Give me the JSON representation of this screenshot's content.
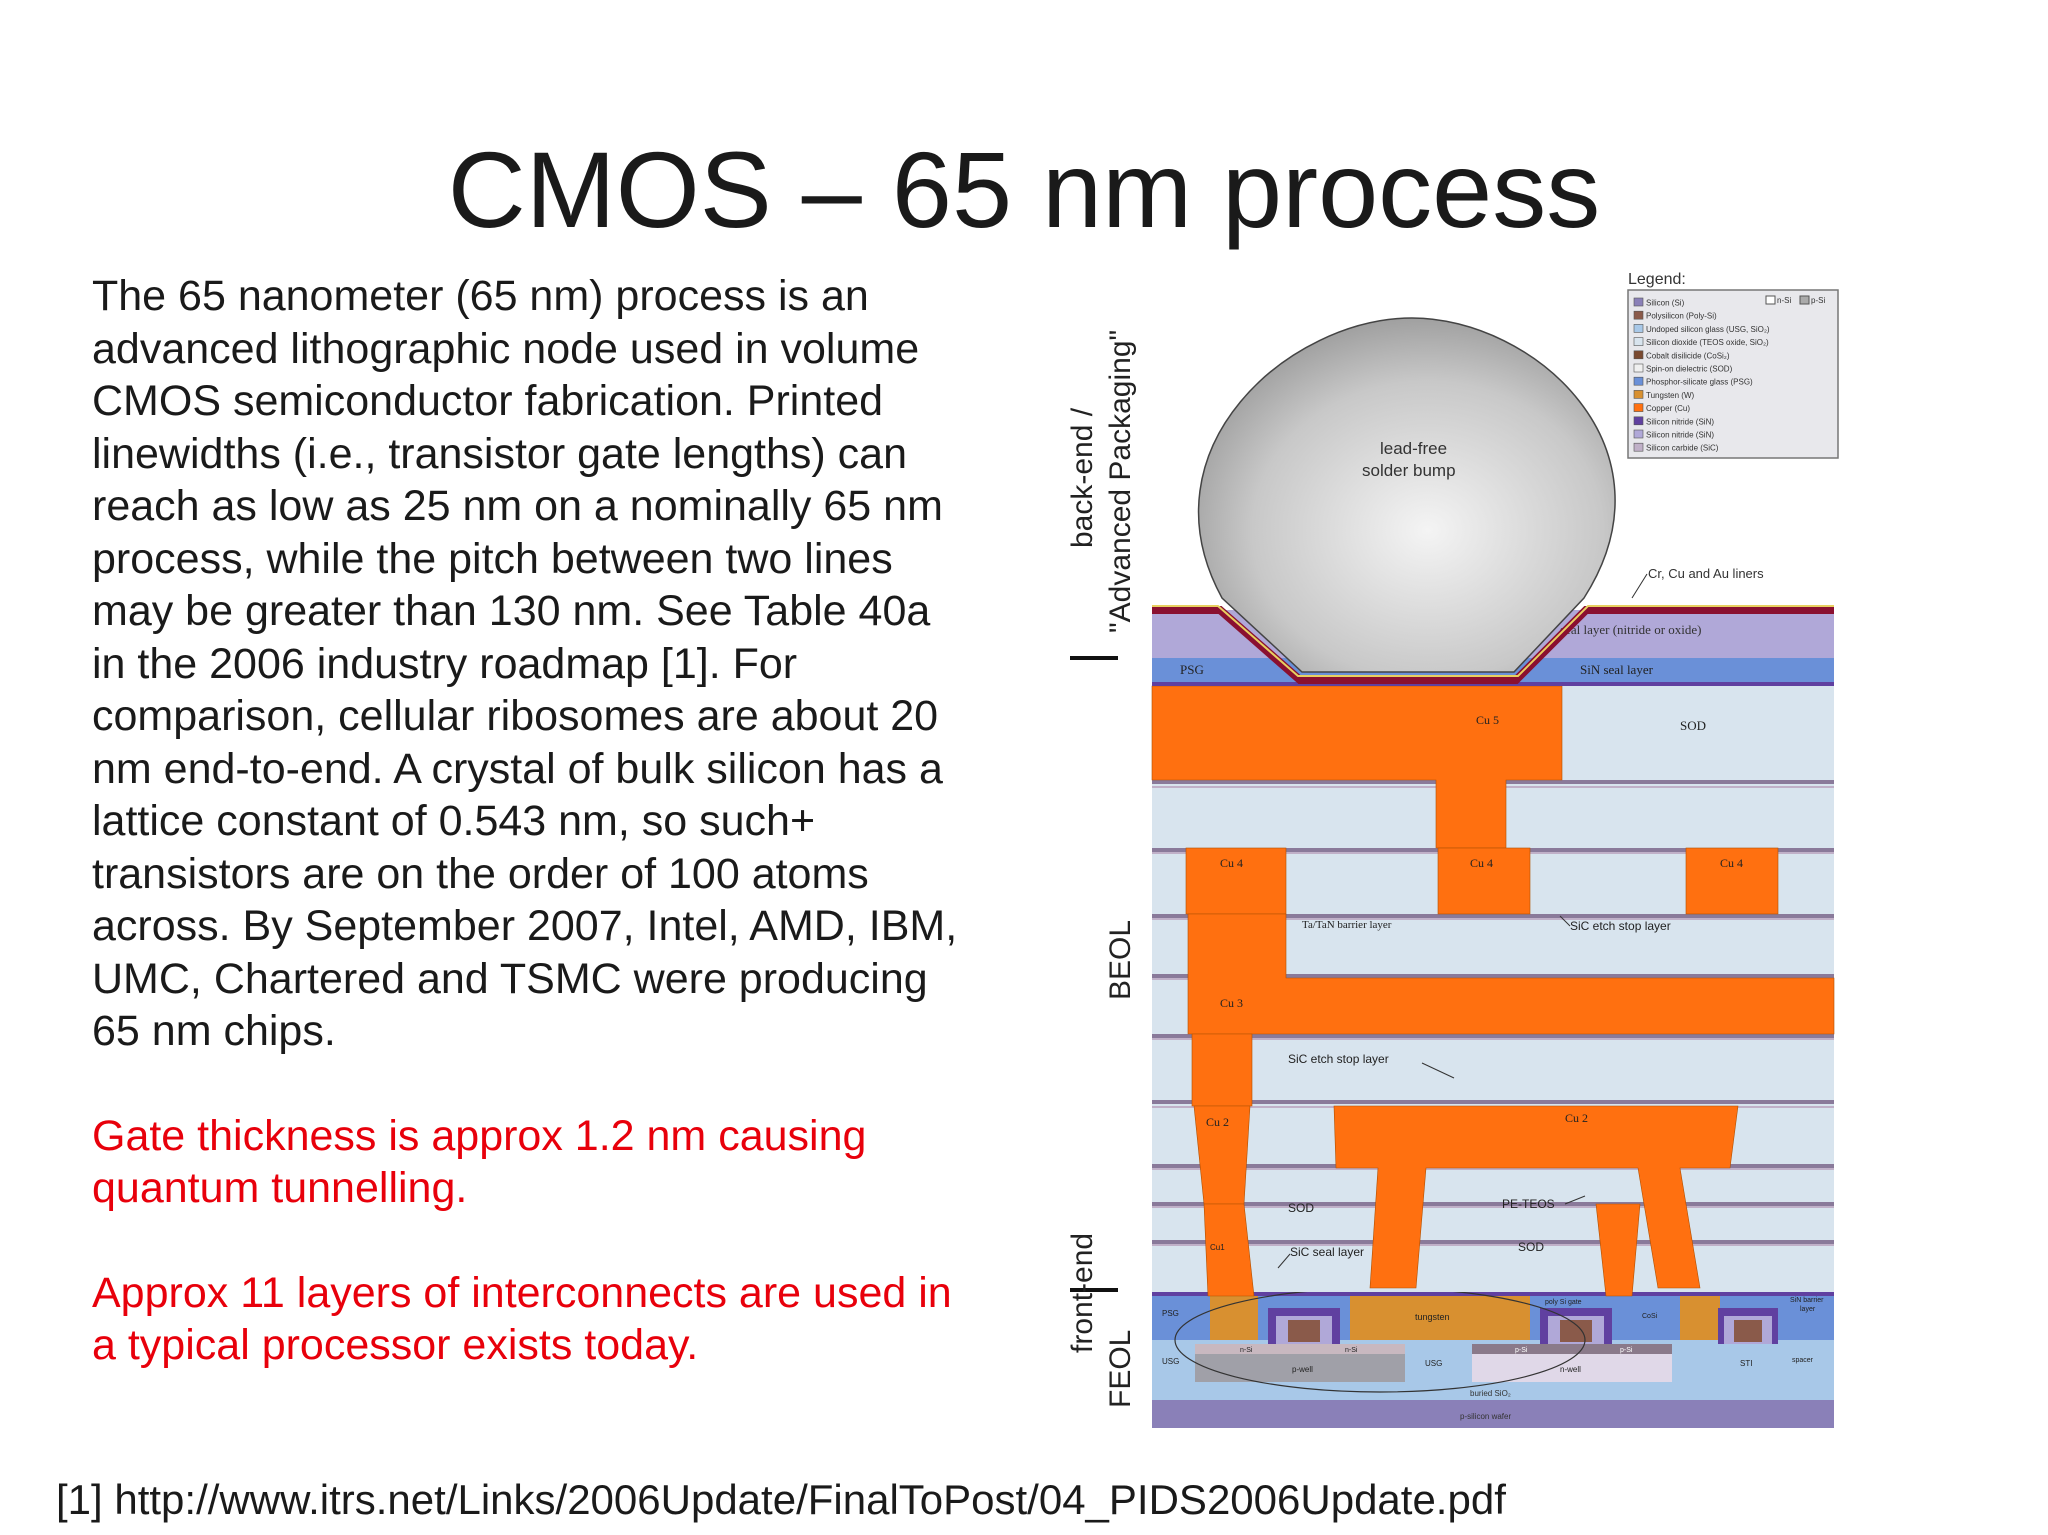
{
  "slide": {
    "title": "CMOS – 65 nm process",
    "body_paragraph": "The 65 nanometer (65 nm) process is an advanced lithographic node used in volume CMOS semiconductor fabrication. Printed linewidths (i.e., transistor gate lengths) can reach as low as 25 nm on a nominally 65 nm process, while the pitch between two lines may be greater than 130 nm. See Table 40a in the 2006 industry roadmap [1]. For comparison, cellular ribosomes are about 20 nm end-to-end. A crystal of bulk silicon has a lattice constant of 0.543 nm, so such+ transistors are on the order of 100 atoms across. By September 2007, Intel, AMD, IBM, UMC, Chartered and TSMC were producing 65 nm chips.",
    "highlight_1": "Gate thickness is approx 1.2 nm causing quantum tunnelling.",
    "highlight_2": "Approx 11 layers of interconnects are used in a typical processor exists today.",
    "reference": "[1] http://www.itrs.net/Links/2006Update/FinalToPost/04_PIDS2006Update.pdf"
  },
  "figure": {
    "side_labels": {
      "back_end_1": "back-end /",
      "back_end_2": "\"Advanced Packaging\"",
      "beol": "BEOL",
      "front_end": "front-end",
      "feol": "FEOL"
    },
    "legend": {
      "title": "Legend:",
      "n_si": "n-Si",
      "p_si": "p-Si",
      "items": [
        {
          "label": "Silicon (Si)",
          "color": "#8a80b8"
        },
        {
          "label": "Polysilicon (Poly-Si)",
          "color": "#8a5a4a"
        },
        {
          "label": "Undoped silicon glass (USG, SiO₂)",
          "color": "#a8c8e8"
        },
        {
          "label": "Silicon dioxide (TEOS oxide, SiO₂)",
          "color": "#d8e4ee"
        },
        {
          "label": "Cobalt disilicide (CoSi₂)",
          "color": "#7a4a30"
        },
        {
          "label": "Spin-on dielectric (SOD)",
          "color": "#f0f0f0"
        },
        {
          "label": "Phosphor-silicate glass (PSG)",
          "color": "#6a90d8"
        },
        {
          "label": "Tungsten (W)",
          "color": "#d89030"
        },
        {
          "label": "Copper (Cu)",
          "color": "#ff7010"
        },
        {
          "label": "Silicon nitride (SiN)",
          "color": "#6040a0"
        },
        {
          "label": "Silicon nitride (SiN)",
          "color": "#b0a8d8"
        },
        {
          "label": "Silicon carbide (SiC)",
          "color": "#c0b0c8"
        }
      ]
    },
    "labels": {
      "solder_1": "lead-free",
      "solder_2": "solder bump",
      "liners": "Cr, Cu and Au liners",
      "seal": "seal layer (nitride or oxide)",
      "psg": "PSG",
      "sin_seal": "SiN seal layer",
      "cu5": "Cu 5",
      "sod_top": "SOD",
      "cu4": "Cu 4",
      "barrier": "Ta/TaN barrier layer",
      "sic_etch_1": "SiC etch stop layer",
      "cu3": "Cu 3",
      "sic_etch_2": "SiC etch stop layer",
      "cu2": "Cu 2",
      "sod_low": "SOD",
      "pe_teos": "PE-TEOS",
      "sod_low2": "SOD",
      "cu1": "Cu1",
      "sic_seal": "SiC seal layer",
      "psg_low": "PSG",
      "tungsten": "tungsten",
      "poly_gate": "poly Si gate",
      "cosi": "CoSi",
      "sin_barrier_1": "SiN barrier",
      "sin_barrier_2": "layer",
      "spacer": "spacer",
      "n_si": "n-Si",
      "n_si2": "n-Si",
      "p_si": "p-Si",
      "p_si2": "p-Si",
      "usg": "USG",
      "usg2": "USG",
      "sti": "STI",
      "p_well": "p-well",
      "n_well": "n-well",
      "buried": "buried SiO₂",
      "wafer": "p-silicon wafer"
    }
  }
}
